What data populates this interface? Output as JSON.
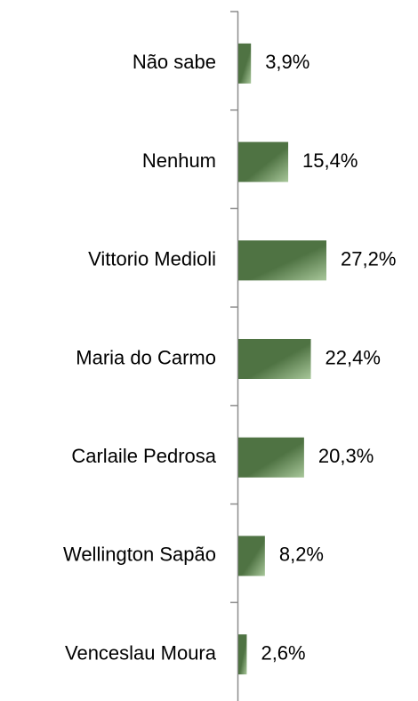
{
  "chart_data": {
    "type": "bar",
    "orientation": "horizontal",
    "categories": [
      "Não sabe",
      "Nenhum",
      "Vittorio Medioli",
      "Maria do Carmo",
      "Carlaile Pedrosa",
      "Wellington Sapão",
      "Venceslau Moura"
    ],
    "values": [
      3.9,
      15.4,
      27.2,
      22.4,
      20.3,
      8.2,
      2.6
    ],
    "value_labels": [
      "3,9%",
      "15,4%",
      "27,2%",
      "22,4%",
      "20,3%",
      "8,2%",
      "2,6%"
    ],
    "color": "#4f7343"
  }
}
